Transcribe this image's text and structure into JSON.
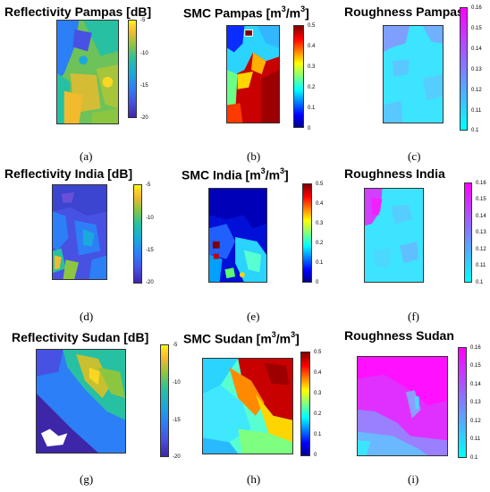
{
  "panels": [
    {
      "id": "a",
      "title": "Reflectivity Pampas [dB]",
      "label": "(a)",
      "ticks": [
        "-5",
        "-10",
        "-15",
        "-20"
      ]
    },
    {
      "id": "b",
      "title_main": "SMC Pampas [m",
      "title_sup1": "3",
      "title_mid": "/m",
      "title_sup2": "3",
      "title_end": "]",
      "label": "(b)",
      "ticks": [
        "0.5",
        "0.4",
        "0.3",
        "0.2",
        "0.1",
        "0"
      ]
    },
    {
      "id": "c",
      "title": "Roughness Pampas",
      "label": "(c)",
      "ticks": [
        "0.16",
        "0.15",
        "0.14",
        "0.13",
        "0.12",
        "0.11",
        "0.1"
      ]
    },
    {
      "id": "d",
      "title": "Reflectivity India [dB]",
      "label": "(d)",
      "ticks": [
        "-5",
        "-10",
        "-15",
        "-20"
      ]
    },
    {
      "id": "e",
      "title_main": "SMC India [m",
      "title_sup1": "3",
      "title_mid": "/m",
      "title_sup2": "3",
      "title_end": "]",
      "label": "(e)",
      "ticks": [
        "0.5",
        "0.4",
        "0.3",
        "0.2",
        "0.1",
        "0"
      ]
    },
    {
      "id": "f",
      "title": "Roughness India",
      "label": "(f)",
      "ticks": [
        "0.16",
        "0.15",
        "0.14",
        "0.13",
        "0.12",
        "0.11",
        "0.1"
      ]
    },
    {
      "id": "g",
      "title": "Reflectivity Sudan [dB]",
      "label": "(g)",
      "ticks": [
        "-5",
        "-10",
        "-15",
        "-20"
      ]
    },
    {
      "id": "h",
      "title_main": "SMC Sudan [m",
      "title_sup1": "3",
      "title_mid": "/m",
      "title_sup2": "3",
      "title_end": "]",
      "label": "(h)",
      "ticks": [
        "0.5",
        "0.4",
        "0.3",
        "0.2",
        "0.1",
        "0"
      ]
    },
    {
      "id": "i",
      "title": "Roughness Sudan",
      "label": "(i)",
      "ticks": [
        "0.16",
        "0.15",
        "0.14",
        "0.13",
        "0.12",
        "0.11",
        "0.1"
      ]
    }
  ],
  "colormaps": {
    "reflectivity": "parula",
    "smc": "jet",
    "roughness": "cool"
  }
}
